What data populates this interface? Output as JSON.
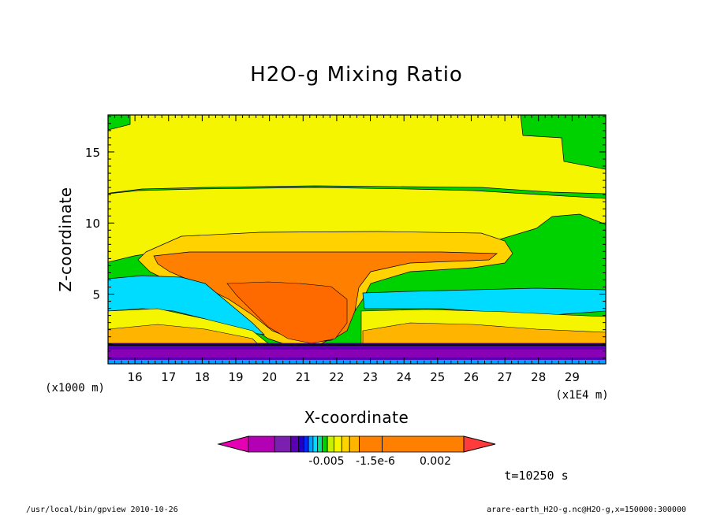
{
  "chart_data": {
    "type": "contour",
    "title": "H2O-g Mixing Ratio",
    "xlabel": "X-coordinate",
    "ylabel": "Z-coordinate",
    "x_unit": "(x1E4 m)",
    "y_unit": "(x1000 m)",
    "xlim": [
      15.2,
      30.0
    ],
    "ylim": [
      0.1,
      17.6
    ],
    "x_ticks": [
      16,
      17,
      18,
      19,
      20,
      21,
      22,
      23,
      24,
      25,
      26,
      27,
      28,
      29
    ],
    "y_ticks": [
      5,
      10,
      15
    ],
    "colorbar": {
      "tick_labels": [
        "-0.005",
        "-1.5e-6",
        "0.002"
      ],
      "colors": [
        "#e600b4",
        "#b400b4",
        "#7a1fb0",
        "#5a00b4",
        "#2000c8",
        "#0028ff",
        "#00a0ff",
        "#00dcff",
        "#00e690",
        "#00d200",
        "#c8f000",
        "#f5f500",
        "#ffd200",
        "#ffb400",
        "#ff8000",
        "#ff3c3c"
      ]
    },
    "regions": [
      {
        "level": "green",
        "color": "#00d200",
        "note": "upper-left corner and right side above ~13 km"
      },
      {
        "level": "yellow",
        "color": "#f5f500",
        "note": "stratosphere band ~11.5-17.6 km"
      },
      {
        "level": "light-orange",
        "color": "#ffd200",
        "note": "anvil outflow ~7-9.5 km, x 17.8-27"
      },
      {
        "level": "orange",
        "color": "#ff8000",
        "note": "anvil core ~2-8 km, x 18.3-25.5"
      },
      {
        "level": "cyan",
        "color": "#00dcff",
        "note": "mid-level band ~4-6 km"
      },
      {
        "level": "purple",
        "color": "#5a00b4",
        "note": "near-surface layer 0-1.5 km"
      }
    ]
  },
  "time_label": "t=10250 s",
  "footer": {
    "left": "/usr/local/bin/gpview  2010-10-26",
    "right": "arare-earth_H2O-g.nc@H2O-g,x=150000:300000"
  }
}
